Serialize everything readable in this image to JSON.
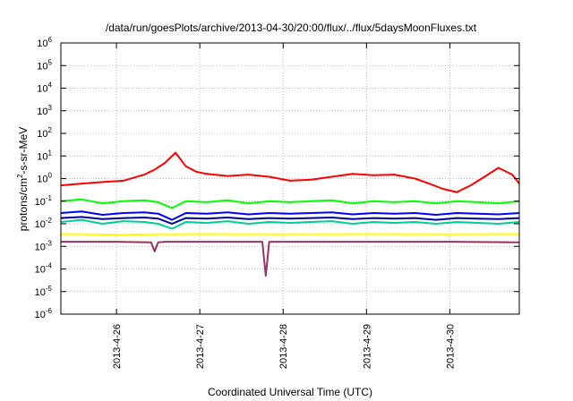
{
  "chart_data": {
    "type": "line",
    "title": "/data/run/goesPlots/archive/2013-04-30/20:00/flux/../flux/5daysMoonFluxes.txt",
    "xlabel": "Coordinated Universal Time (UTC)",
    "ylabel": "protons/cm2-s-sr-MeV",
    "ylabel_parts": {
      "base": "protons/cm",
      "sup": "2",
      "rest": "-s-sr-MeV"
    },
    "y_scale": "log",
    "ylim": [
      1e-06,
      1000000.0
    ],
    "y_ticks": [
      {
        "value": 1e-06,
        "base": "10",
        "exp": "-6"
      },
      {
        "value": 1e-05,
        "base": "10",
        "exp": "-5"
      },
      {
        "value": 0.0001,
        "base": "10",
        "exp": "-4"
      },
      {
        "value": 0.001,
        "base": "10",
        "exp": "-3"
      },
      {
        "value": 0.01,
        "base": "10",
        "exp": "-2"
      },
      {
        "value": 0.1,
        "base": "10",
        "exp": "-1"
      },
      {
        "value": 1.0,
        "base": "10",
        "exp": "0"
      },
      {
        "value": 10.0,
        "base": "10",
        "exp": "1"
      },
      {
        "value": 100.0,
        "base": "10",
        "exp": "2"
      },
      {
        "value": 1000.0,
        "base": "10",
        "exp": "3"
      },
      {
        "value": 10000.0,
        "base": "10",
        "exp": "4"
      },
      {
        "value": 100000.0,
        "base": "10",
        "exp": "5"
      },
      {
        "value": 1000000.0,
        "base": "10",
        "exp": "6"
      }
    ],
    "xlim": [
      "2013-04-25T08:00",
      "2013-04-30T20:00"
    ],
    "x_ticks": [
      {
        "value": "2013-04-26T00:00",
        "label": "2013-4-26"
      },
      {
        "value": "2013-04-27T00:00",
        "label": "2013-4-27"
      },
      {
        "value": "2013-04-28T00:00",
        "label": "2013-4-28"
      },
      {
        "value": "2013-04-29T00:00",
        "label": "2013-4-29"
      },
      {
        "value": "2013-04-30T00:00",
        "label": "2013-4-30"
      }
    ],
    "grid": true,
    "legend": "none",
    "series": [
      {
        "color": "#ff0000",
        "x": [
          "2013-04-25T08:00",
          "2013-04-25T14:00",
          "2013-04-25T20:00",
          "2013-04-26T02:00",
          "2013-04-26T08:00",
          "2013-04-26T11:00",
          "2013-04-26T14:00",
          "2013-04-26T17:00",
          "2013-04-26T20:00",
          "2013-04-26T23:00",
          "2013-04-27T02:00",
          "2013-04-27T08:00",
          "2013-04-27T14:00",
          "2013-04-27T20:00",
          "2013-04-28T02:00",
          "2013-04-28T08:00",
          "2013-04-28T14:00",
          "2013-04-28T20:00",
          "2013-04-29T02:00",
          "2013-04-29T08:00",
          "2013-04-29T14:00",
          "2013-04-29T18:00",
          "2013-04-29T22:00",
          "2013-04-30T02:00",
          "2013-04-30T06:00",
          "2013-04-30T10:00",
          "2013-04-30T14:00",
          "2013-04-30T18:00",
          "2013-04-30T20:00"
        ],
        "y": [
          0.5,
          0.6,
          0.7,
          0.8,
          1.5,
          2.5,
          5,
          14,
          3.5,
          2,
          1.6,
          1.3,
          1.5,
          1.2,
          0.8,
          0.9,
          1.2,
          1.6,
          1.4,
          1.5,
          1.0,
          0.6,
          0.35,
          0.25,
          0.5,
          1.2,
          3,
          1.5,
          0.6
        ]
      },
      {
        "color": "#00ff00",
        "x": [
          "2013-04-25T08:00",
          "2013-04-25T14:00",
          "2013-04-25T20:00",
          "2013-04-26T02:00",
          "2013-04-26T08:00",
          "2013-04-26T12:00",
          "2013-04-26T16:00",
          "2013-04-26T20:00",
          "2013-04-27T02:00",
          "2013-04-27T08:00",
          "2013-04-27T14:00",
          "2013-04-27T20:00",
          "2013-04-28T02:00",
          "2013-04-28T08:00",
          "2013-04-28T14:00",
          "2013-04-28T20:00",
          "2013-04-29T02:00",
          "2013-04-29T08:00",
          "2013-04-29T14:00",
          "2013-04-29T20:00",
          "2013-04-30T02:00",
          "2013-04-30T08:00",
          "2013-04-30T14:00",
          "2013-04-30T20:00"
        ],
        "y": [
          0.1,
          0.12,
          0.08,
          0.1,
          0.11,
          0.09,
          0.05,
          0.1,
          0.09,
          0.11,
          0.08,
          0.1,
          0.09,
          0.1,
          0.11,
          0.08,
          0.1,
          0.09,
          0.1,
          0.08,
          0.1,
          0.09,
          0.08,
          0.1
        ]
      },
      {
        "color": "#00cc99",
        "x": [
          "2013-04-25T08:00",
          "2013-04-25T14:00",
          "2013-04-25T20:00",
          "2013-04-26T02:00",
          "2013-04-26T08:00",
          "2013-04-26T12:00",
          "2013-04-26T16:00",
          "2013-04-26T20:00",
          "2013-04-27T02:00",
          "2013-04-27T08:00",
          "2013-04-27T14:00",
          "2013-04-27T20:00",
          "2013-04-28T02:00",
          "2013-04-28T08:00",
          "2013-04-28T14:00",
          "2013-04-28T20:00",
          "2013-04-29T02:00",
          "2013-04-29T08:00",
          "2013-04-29T14:00",
          "2013-04-29T20:00",
          "2013-04-30T02:00",
          "2013-04-30T08:00",
          "2013-04-30T14:00",
          "2013-04-30T20:00"
        ],
        "y": [
          0.012,
          0.015,
          0.01,
          0.013,
          0.012,
          0.01,
          0.006,
          0.012,
          0.011,
          0.013,
          0.01,
          0.012,
          0.011,
          0.012,
          0.013,
          0.01,
          0.012,
          0.011,
          0.012,
          0.01,
          0.012,
          0.011,
          0.01,
          0.012
        ]
      },
      {
        "color": "#0000ff",
        "x": [
          "2013-04-25T08:00",
          "2013-04-25T14:00",
          "2013-04-25T20:00",
          "2013-04-26T02:00",
          "2013-04-26T08:00",
          "2013-04-26T12:00",
          "2013-04-26T16:00",
          "2013-04-26T20:00",
          "2013-04-27T02:00",
          "2013-04-27T08:00",
          "2013-04-27T14:00",
          "2013-04-27T20:00",
          "2013-04-28T02:00",
          "2013-04-28T08:00",
          "2013-04-28T14:00",
          "2013-04-28T20:00",
          "2013-04-29T02:00",
          "2013-04-29T08:00",
          "2013-04-29T14:00",
          "2013-04-29T20:00",
          "2013-04-30T02:00",
          "2013-04-30T08:00",
          "2013-04-30T14:00",
          "2013-04-30T20:00"
        ],
        "y": [
          0.03,
          0.035,
          0.025,
          0.03,
          0.032,
          0.028,
          0.015,
          0.03,
          0.028,
          0.032,
          0.026,
          0.03,
          0.028,
          0.03,
          0.032,
          0.026,
          0.03,
          0.028,
          0.03,
          0.025,
          0.03,
          0.028,
          0.026,
          0.03
        ]
      },
      {
        "color": "#000099",
        "x": [
          "2013-04-25T08:00",
          "2013-04-25T14:00",
          "2013-04-25T20:00",
          "2013-04-26T02:00",
          "2013-04-26T08:00",
          "2013-04-26T12:00",
          "2013-04-26T16:00",
          "2013-04-26T20:00",
          "2013-04-27T02:00",
          "2013-04-27T08:00",
          "2013-04-27T14:00",
          "2013-04-27T20:00",
          "2013-04-28T02:00",
          "2013-04-28T08:00",
          "2013-04-28T14:00",
          "2013-04-28T20:00",
          "2013-04-29T02:00",
          "2013-04-29T08:00",
          "2013-04-29T14:00",
          "2013-04-29T20:00",
          "2013-04-30T02:00",
          "2013-04-30T08:00",
          "2013-04-30T14:00",
          "2013-04-30T20:00"
        ],
        "y": [
          0.018,
          0.02,
          0.016,
          0.018,
          0.019,
          0.017,
          0.01,
          0.018,
          0.017,
          0.019,
          0.016,
          0.018,
          0.017,
          0.018,
          0.019,
          0.016,
          0.018,
          0.017,
          0.018,
          0.015,
          0.018,
          0.017,
          0.016,
          0.018
        ]
      },
      {
        "color": "#ffff00",
        "x": [
          "2013-04-25T08:00",
          "2013-04-26T00:00",
          "2013-04-26T12:00",
          "2013-04-27T00:00",
          "2013-04-28T00:00",
          "2013-04-29T00:00",
          "2013-04-30T00:00",
          "2013-04-30T20:00"
        ],
        "y": [
          0.0035,
          0.0033,
          0.0034,
          0.0035,
          0.0034,
          0.0035,
          0.0034,
          0.0035
        ]
      },
      {
        "color": "#993366",
        "x": [
          "2013-04-25T08:00",
          "2013-04-26T00:00",
          "2013-04-26T10:00",
          "2013-04-26T11:00",
          "2013-04-26T12:00",
          "2013-04-26T14:00",
          "2013-04-27T00:00",
          "2013-04-27T16:00",
          "2013-04-27T18:00",
          "2013-04-27T19:00",
          "2013-04-27T20:00",
          "2013-04-27T22:00",
          "2013-04-28T12:00",
          "2013-04-29T00:00",
          "2013-04-30T00:00",
          "2013-04-30T20:00"
        ],
        "y": [
          0.0016,
          0.0016,
          0.0015,
          0.0006,
          0.0015,
          0.0016,
          0.0016,
          0.0016,
          0.0016,
          5e-05,
          0.0016,
          0.0016,
          0.0016,
          0.0016,
          0.0016,
          0.0015
        ]
      }
    ]
  }
}
